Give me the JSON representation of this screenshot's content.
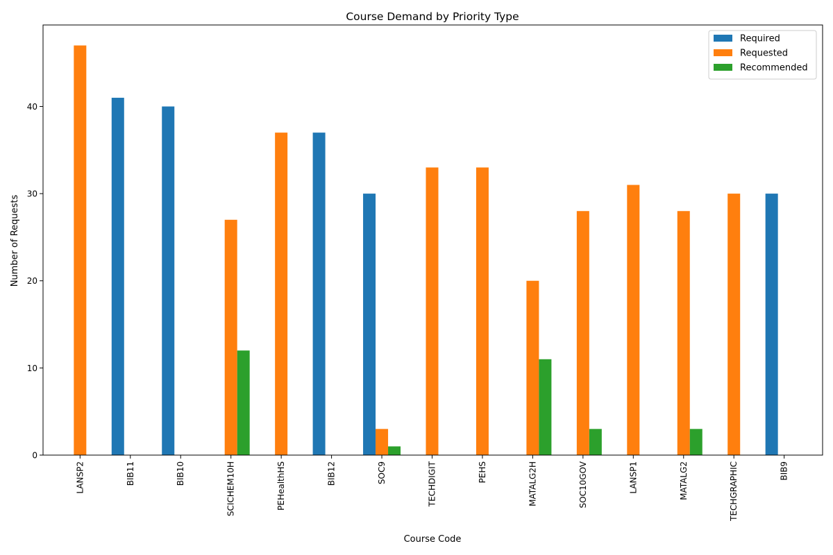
{
  "chart_data": {
    "type": "bar",
    "title": "Course Demand by Priority Type",
    "xlabel": "Course Code",
    "ylabel": "Number of Requests",
    "ylim": [
      0,
      49.35
    ],
    "yticks": [
      0,
      10,
      20,
      30,
      40
    ],
    "grid": false,
    "legend_position": "top-right",
    "categories": [
      "LANSP2",
      "BIB11",
      "BIB10",
      "SCICHEM10H",
      "PEHealthHS",
      "BIB12",
      "SOC9",
      "TECHDIGIT",
      "PEHS",
      "MATALG2H",
      "SOC10GOV",
      "LANSP1",
      "MATALG2",
      "TECHGRAPHIC",
      "BIB9"
    ],
    "series": [
      {
        "name": "Required",
        "color": "#1f77b4",
        "values": [
          0,
          41,
          40,
          0,
          0,
          37,
          30,
          0,
          0,
          0,
          0,
          0,
          0,
          0,
          30
        ]
      },
      {
        "name": "Requested",
        "color": "#ff7f0e",
        "values": [
          47,
          0,
          0,
          27,
          37,
          0,
          3,
          33,
          33,
          20,
          28,
          31,
          28,
          30,
          0
        ]
      },
      {
        "name": "Recommended",
        "color": "#2ca02c",
        "values": [
          0,
          0,
          0,
          12,
          0,
          0,
          1,
          0,
          0,
          11,
          3,
          0,
          3,
          0,
          0
        ]
      }
    ]
  }
}
